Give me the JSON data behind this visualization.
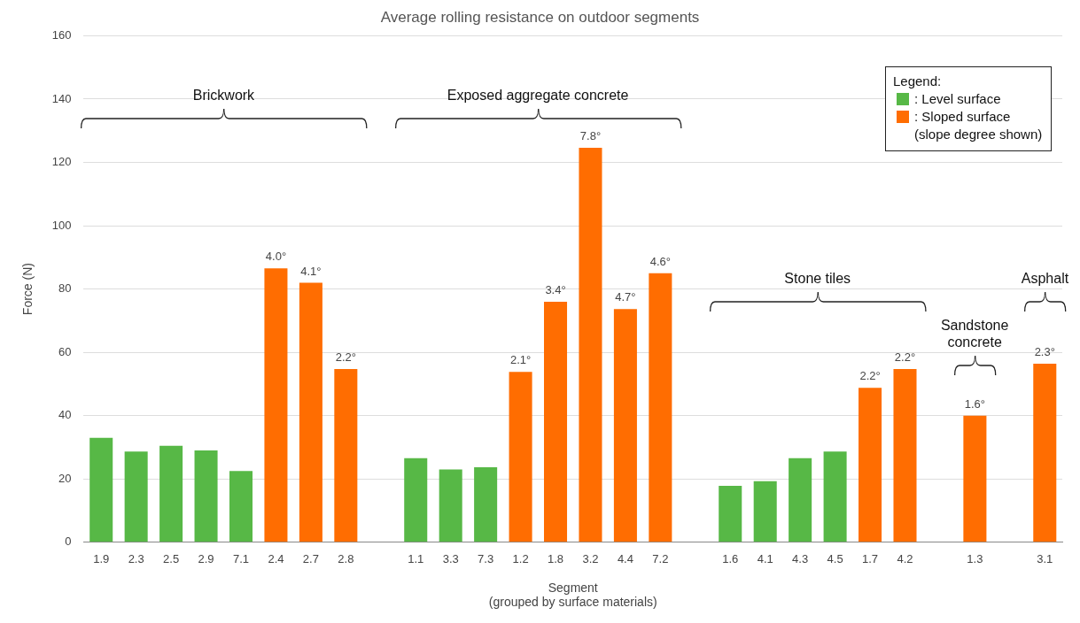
{
  "chart_data": {
    "type": "bar",
    "title": "Average rolling resistance on outdoor segments",
    "xlabel": "Segment\n(grouped by surface materials)",
    "ylabel": "Force (N)",
    "legend_title": "Legend:",
    "categories": [
      "1.9",
      "2.3",
      "2.5",
      "2.9",
      "7.1",
      "2.4",
      "2.7",
      "2.8",
      null,
      "1.1",
      "3.3",
      "7.3",
      "1.2",
      "1.8",
      "3.2",
      "4.4",
      "7.2",
      null,
      "1.6",
      "4.1",
      "4.3",
      "4.5",
      "1.7",
      "4.2",
      null,
      "1.3",
      null,
      "3.1"
    ],
    "series": [
      {
        "name": ": Level surface",
        "color": "#57b846",
        "values": [
          33,
          28.7,
          30.5,
          29,
          22.5,
          null,
          null,
          null,
          null,
          26.6,
          23,
          23.7,
          null,
          null,
          null,
          null,
          null,
          null,
          17.8,
          19.3,
          26.6,
          28.7,
          null,
          null,
          null,
          null,
          null,
          null
        ]
      },
      {
        "name": ": Sloped surface\n(slope degree shown)",
        "color": "#ff6d01",
        "values": [
          null,
          null,
          null,
          null,
          null,
          86.5,
          82,
          54.7,
          null,
          null,
          null,
          null,
          53.8,
          76,
          124.6,
          73.7,
          85,
          null,
          null,
          null,
          null,
          null,
          48.8,
          54.7,
          null,
          40,
          null,
          56.4
        ]
      }
    ],
    "annotations": [
      "Brickwork",
      "Exposed aggregate concrete",
      "Stone tiles",
      "Sandstone\nconcrete",
      "Asphalt",
      {
        "text": "4.0°",
        "x": "2.4",
        "y": 86.5
      },
      {
        "text": "4.1°",
        "x": "2.7",
        "y": 82
      },
      {
        "text": "2.2°",
        "x": "2.8",
        "y": 54.7
      },
      {
        "text": "2.1°",
        "x": "1.2",
        "y": 53.8
      },
      {
        "text": "3.4°",
        "x": "1.8",
        "y": 76
      },
      {
        "text": "7.8°",
        "x": "3.2",
        "y": 124.6
      },
      {
        "text": "4.7°",
        "x": "4.4",
        "y": 73.7
      },
      {
        "text": "4.6°",
        "x": "7.2",
        "y": 85
      },
      {
        "text": "2.2°",
        "x": "1.7",
        "y": 48.8
      },
      {
        "text": "2.2°",
        "x": "4.2",
        "y": 54.7
      },
      {
        "text": "1.6°",
        "x": "1.3",
        "y": 40
      },
      {
        "text": "2.3°",
        "x": "3.1",
        "y": 56.4
      }
    ],
    "ylim": [
      0,
      160
    ],
    "yticks": [
      0,
      20,
      40,
      60,
      80,
      100,
      120,
      140,
      160
    ],
    "grid": "y",
    "legend": "top right"
  }
}
